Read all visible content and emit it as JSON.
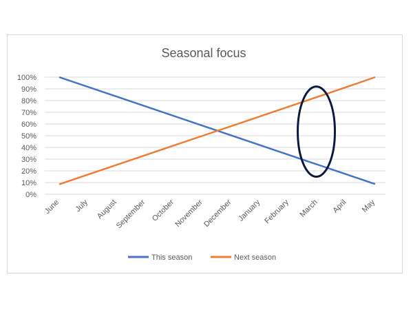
{
  "chart_data": {
    "type": "line",
    "title": "Seasonal focus",
    "xlabel": "",
    "ylabel": "",
    "categories": [
      "June",
      "July",
      "August",
      "September",
      "October",
      "November",
      "December",
      "January",
      "February",
      "March",
      "April",
      "May"
    ],
    "series": [
      {
        "name": "This season",
        "color": "#4472c4",
        "values": [
          100,
          91.7,
          83.4,
          75.1,
          66.8,
          58.5,
          50.2,
          41.9,
          33.6,
          25.3,
          17.0,
          8.7
        ]
      },
      {
        "name": "Next season",
        "color": "#ed7d31",
        "values": [
          8.5,
          16.8,
          25.1,
          33.4,
          41.7,
          50.0,
          58.3,
          66.6,
          74.9,
          83.2,
          91.5,
          100
        ]
      }
    ],
    "ylim": [
      0,
      100
    ],
    "yticks": [
      "0%",
      "10%",
      "20%",
      "30%",
      "40%",
      "50%",
      "60%",
      "70%",
      "80%",
      "90%",
      "100%"
    ],
    "grid": true,
    "legend": "bottom",
    "annotations": [
      {
        "type": "ellipse",
        "category": "March",
        "y_range": [
          15,
          92
        ],
        "color": "#0d1a3d"
      }
    ]
  }
}
